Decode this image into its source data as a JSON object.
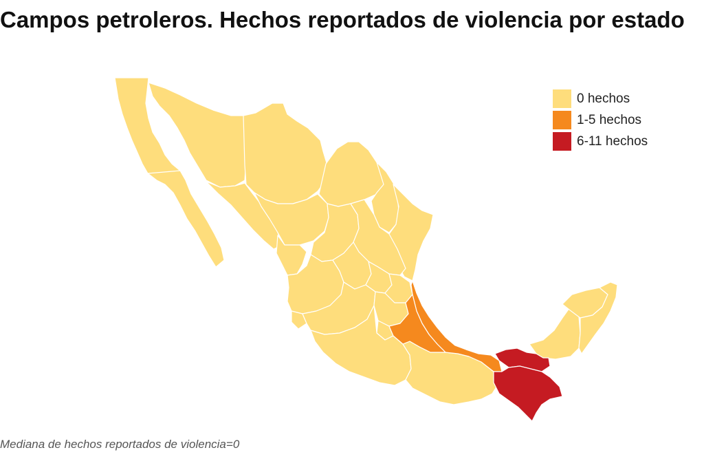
{
  "title": "Campos petroleros. Hechos reportados de violencia por estado",
  "legend": [
    {
      "label": "0 hechos",
      "color": "#fedd7c"
    },
    {
      "label": "1-5 hechos",
      "color": "#f5891e"
    },
    {
      "label": "6-11 hechos",
      "color": "#c51b22"
    }
  ],
  "note": "Mediana de hechos reportados de violencia=0",
  "map": {
    "base_color": "#fedd7c",
    "border_color": "#ffffff",
    "highlighted_states": [
      {
        "name": "Veracruz",
        "category": "1-5 hechos",
        "color": "#f5891e"
      },
      {
        "name": "Puebla",
        "category": "1-5 hechos",
        "color": "#f5891e"
      },
      {
        "name": "Tabasco",
        "category": "6-11 hechos",
        "color": "#c51b22"
      },
      {
        "name": "Chiapas",
        "category": "6-11 hechos",
        "color": "#c51b22"
      }
    ]
  }
}
